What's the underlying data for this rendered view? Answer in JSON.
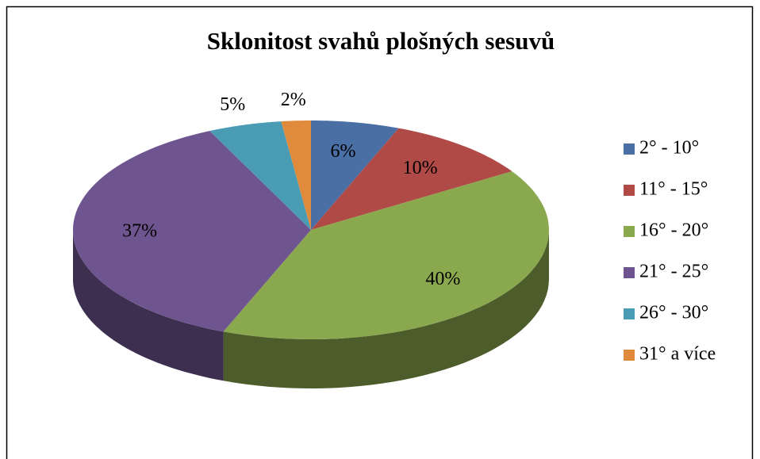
{
  "chart_data": {
    "type": "pie",
    "title": "Sklonitost svahů plošných sesuvů",
    "categories": [
      "2° - 10°",
      "11° - 15°",
      "16° - 20°",
      "21° - 25°",
      "26° - 30°",
      "31° a více"
    ],
    "values": [
      6,
      10,
      40,
      37,
      5,
      2
    ],
    "value_labels": [
      "6%",
      "10%",
      "40%",
      "37%",
      "5%",
      "2%"
    ],
    "colors": [
      "#4a6fa5",
      "#b04a47",
      "#8aa84e",
      "#6f5590",
      "#4a9cb4",
      "#e08a3c"
    ],
    "legend": "right"
  }
}
